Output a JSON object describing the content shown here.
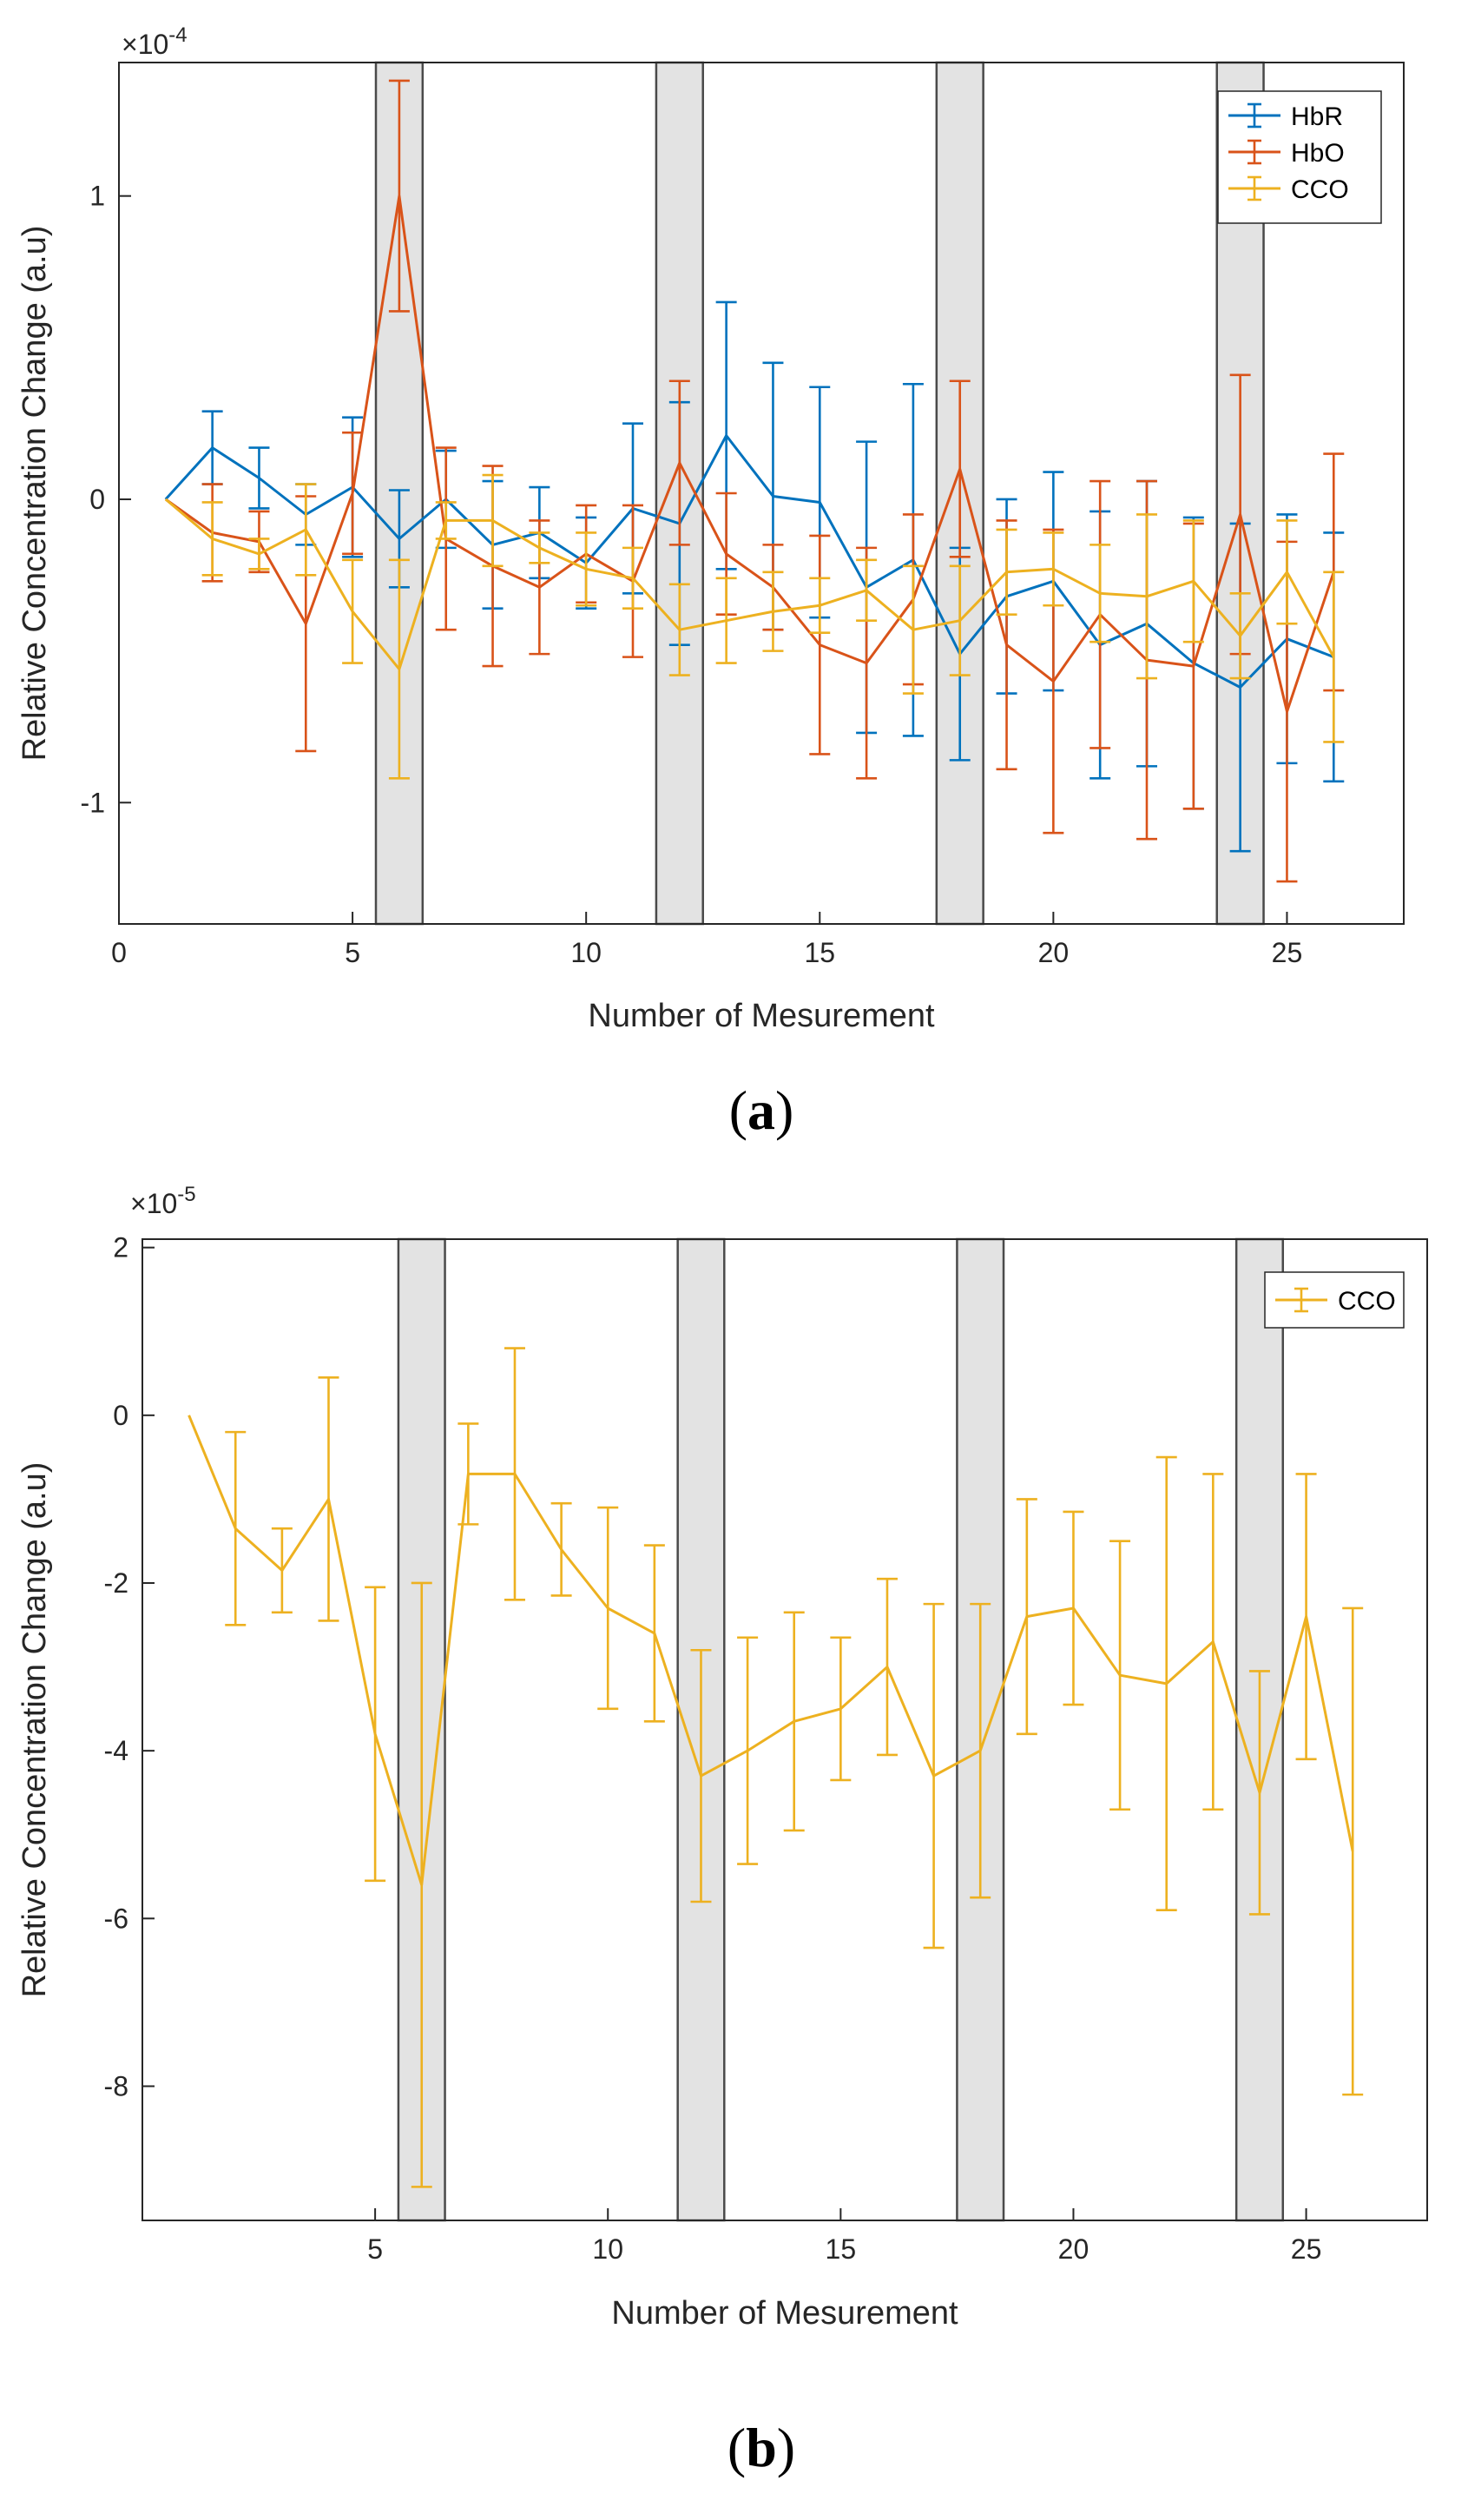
{
  "chart_data": [
    {
      "type": "line",
      "panel_label_open": "(",
      "panel_label_letter": "a",
      "panel_label_close": ")",
      "title": "",
      "xlabel": "Number of Mesurement",
      "ylabel": "Relative Concentration Change (a.u)",
      "y_multiplier": "×10",
      "y_multiplier_exp": "-4",
      "xlim": [
        0,
        27.5
      ],
      "ylim": [
        -1.4,
        1.44
      ],
      "xticks": [
        0,
        5,
        10,
        15,
        20,
        25
      ],
      "xtick_labels": [
        "0",
        "5",
        "10",
        "15",
        "20",
        "25"
      ],
      "yticks": [
        -1,
        0,
        1
      ],
      "ytick_labels": [
        "-1",
        "0",
        "1"
      ],
      "legend_position": "top-right",
      "shaded_regions": [
        [
          5.5,
          6.5
        ],
        [
          11.5,
          12.5
        ],
        [
          17.5,
          18.5
        ],
        [
          23.5,
          24.5
        ]
      ],
      "x": [
        1,
        2,
        3,
        4,
        5,
        6,
        7,
        8,
        9,
        10,
        11,
        12,
        13,
        14,
        15,
        16,
        17,
        18,
        19,
        20,
        21,
        22,
        23,
        24,
        25,
        26
      ],
      "series": [
        {
          "name": "HbR",
          "color": "#0072BD",
          "values": [
            0,
            0.17,
            0.07,
            -0.05,
            0.04,
            -0.13,
            0.0,
            -0.15,
            -0.11,
            -0.21,
            -0.03,
            -0.08,
            0.21,
            0.01,
            -0.01,
            -0.29,
            -0.2,
            -0.51,
            -0.32,
            -0.27,
            -0.48,
            -0.41,
            -0.54,
            -0.62,
            -0.46,
            -0.52
          ],
          "errors": [
            0,
            0.12,
            0.1,
            0.1,
            0.23,
            0.16,
            0.16,
            0.21,
            0.15,
            0.15,
            0.28,
            0.4,
            0.44,
            0.44,
            0.38,
            0.48,
            0.58,
            0.35,
            0.32,
            0.36,
            0.44,
            0.47,
            0.48,
            0.54,
            0.41,
            0.41
          ]
        },
        {
          "name": "HbO",
          "color": "#D95319",
          "values": [
            0,
            -0.11,
            -0.14,
            -0.41,
            0.02,
            1.0,
            -0.13,
            -0.22,
            -0.29,
            -0.18,
            -0.27,
            0.12,
            -0.18,
            -0.29,
            -0.48,
            -0.54,
            -0.33,
            0.1,
            -0.48,
            -0.6,
            -0.38,
            -0.53,
            -0.55,
            -0.05,
            -0.7,
            -0.24
          ],
          "errors": [
            0,
            0.16,
            0.1,
            0.42,
            0.2,
            0.38,
            0.3,
            0.33,
            0.22,
            0.16,
            0.25,
            0.27,
            0.2,
            0.14,
            0.36,
            0.38,
            0.28,
            0.29,
            0.41,
            0.5,
            0.44,
            0.59,
            0.47,
            0.46,
            0.56,
            0.39
          ]
        },
        {
          "name": "CCO",
          "color": "#EDB120",
          "values": [
            0,
            -0.13,
            -0.18,
            -0.1,
            -0.37,
            -0.56,
            -0.07,
            -0.07,
            -0.16,
            -0.23,
            -0.26,
            -0.43,
            -0.4,
            -0.37,
            -0.35,
            -0.3,
            -0.43,
            -0.4,
            -0.24,
            -0.23,
            -0.31,
            -0.32,
            -0.27,
            -0.45,
            -0.24,
            -0.52
          ],
          "errors": [
            0,
            0.12,
            0.05,
            0.15,
            0.17,
            0.36,
            0.06,
            0.15,
            0.05,
            0.12,
            0.1,
            0.15,
            0.14,
            0.13,
            0.09,
            0.1,
            0.21,
            0.18,
            0.14,
            0.12,
            0.16,
            0.27,
            0.2,
            0.14,
            0.17,
            0.28
          ]
        }
      ]
    },
    {
      "type": "line",
      "panel_label_open": "(",
      "panel_label_letter": "b",
      "panel_label_close": ")",
      "title": "",
      "xlabel": "Number of Mesurement",
      "ylabel": "Relative Concentration Change (a.u)",
      "y_multiplier": "×10",
      "y_multiplier_exp": "-5",
      "xlim": [
        0,
        27.6
      ],
      "ylim": [
        -9.6,
        2.1
      ],
      "xticks": [
        5,
        10,
        15,
        20,
        25
      ],
      "xtick_labels": [
        "5",
        "10",
        "15",
        "20",
        "25"
      ],
      "yticks": [
        -8,
        -6,
        -4,
        -2,
        0,
        2
      ],
      "ytick_labels": [
        "-8",
        "-6",
        "-4",
        "-2",
        "0",
        "2"
      ],
      "legend_position": "top-right",
      "shaded_regions": [
        [
          5.5,
          6.5
        ],
        [
          11.5,
          12.5
        ],
        [
          17.5,
          18.5
        ],
        [
          23.5,
          24.5
        ]
      ],
      "x": [
        1,
        2,
        3,
        4,
        5,
        6,
        7,
        8,
        9,
        10,
        11,
        12,
        13,
        14,
        15,
        16,
        17,
        18,
        19,
        20,
        21,
        22,
        23,
        24,
        25,
        26
      ],
      "series": [
        {
          "name": "CCO",
          "color": "#EDB120",
          "values": [
            0,
            -1.35,
            -1.85,
            -1.0,
            -3.8,
            -5.6,
            -0.7,
            -0.7,
            -1.6,
            -2.3,
            -2.6,
            -4.3,
            -4.0,
            -3.65,
            -3.5,
            -3.0,
            -4.3,
            -4.0,
            -2.4,
            -2.3,
            -3.1,
            -3.2,
            -2.7,
            -4.5,
            -2.4,
            -5.2
          ],
          "errors": [
            0,
            1.15,
            0.5,
            1.45,
            1.75,
            3.6,
            0.6,
            1.5,
            0.55,
            1.2,
            1.05,
            1.5,
            1.35,
            1.3,
            0.85,
            1.05,
            2.05,
            1.75,
            1.4,
            1.15,
            1.6,
            2.7,
            2.0,
            1.45,
            1.7,
            2.9
          ]
        }
      ]
    }
  ]
}
